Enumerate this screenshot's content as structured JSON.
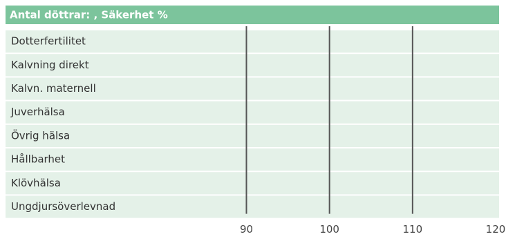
{
  "chart_data": {
    "type": "bar",
    "orientation": "horizontal",
    "title": "Antal döttrar: , Säkerhet %",
    "categories": [
      "Dotterfertilitet",
      "Kalvning direkt",
      "Kalvn. maternell",
      "Juverhälsa",
      "Övrig hälsa",
      "Hållbarhet",
      "Klövhälsa",
      "Ungdjursöverlevnad"
    ],
    "values": [
      null,
      null,
      null,
      null,
      null,
      null,
      null,
      null
    ],
    "color": "#7cc49c",
    "xlim": [
      61,
      120
    ],
    "xticks": [
      90,
      100,
      110,
      120
    ],
    "grid": true
  }
}
